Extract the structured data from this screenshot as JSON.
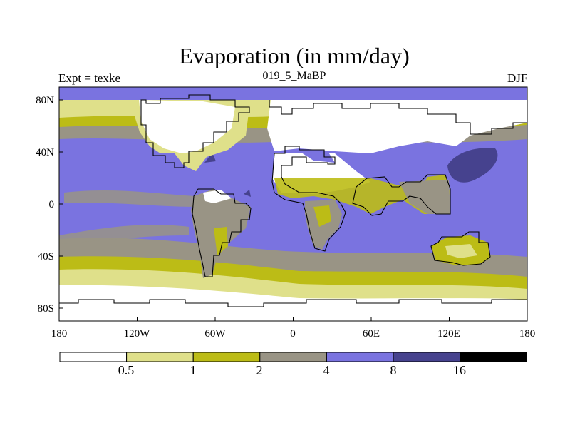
{
  "header": {
    "title": "Evaporation (in mm/day)",
    "left_label": "Expt = texke",
    "center_label": "019_5_MaBP",
    "right_label": "DJF"
  },
  "axes": {
    "x_tick_labels": [
      "180",
      "120W",
      "60W",
      "0",
      "60E",
      "120E",
      "180"
    ],
    "y_tick_labels": [
      "80N",
      "40N",
      "0",
      "40S",
      "80S"
    ]
  },
  "colorbar": {
    "levels": [
      "0.5",
      "1",
      "2",
      "4",
      "8",
      "16"
    ],
    "colors": [
      "#ffffff",
      "#dfe08a",
      "#bcbc16",
      "#999485",
      "#7a73e0",
      "#46428e",
      "#000000"
    ]
  },
  "palette": {
    "white": "#ffffff",
    "pale_yellow": "#dfe08a",
    "olive": "#bcbc16",
    "gray": "#999485",
    "blue": "#7a73e0",
    "dark_blue": "#46428e"
  }
}
